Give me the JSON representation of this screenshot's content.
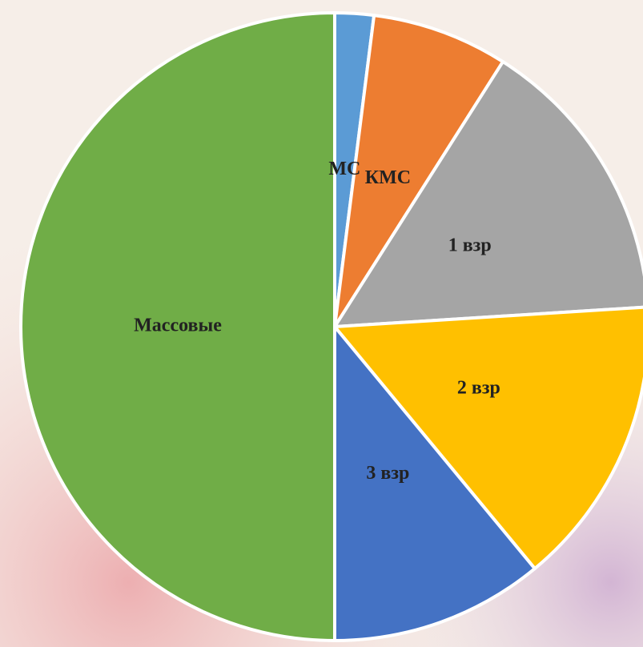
{
  "chart_data": {
    "type": "pie",
    "categories": [
      "МС",
      "КМС",
      "1 взр",
      "2 взр",
      "3 взр",
      "Массовые"
    ],
    "values": [
      2,
      7,
      15,
      15,
      11,
      50
    ],
    "colors": [
      "#5b9bd5",
      "#ed7d31",
      "#a5a5a5",
      "#ffc000",
      "#4472c4",
      "#70ad47"
    ]
  }
}
